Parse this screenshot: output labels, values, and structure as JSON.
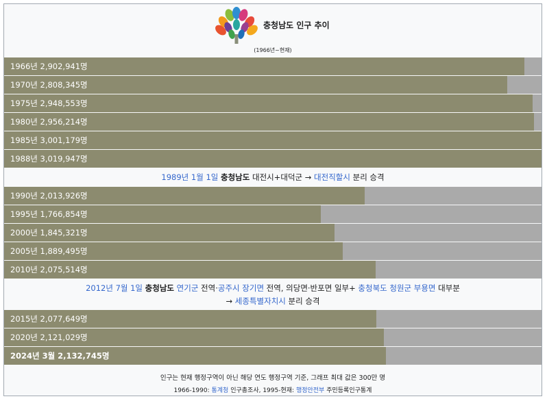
{
  "chart_data": {
    "type": "bar",
    "orientation": "horizontal",
    "title": "충청남도 인구 추이",
    "subtitle": "(1966년~현재)",
    "xlim": [
      0,
      3000000
    ],
    "rows": [
      {
        "kind": "bar",
        "label": "1966년 2,902,941명",
        "year": 1966,
        "value": 2902941
      },
      {
        "kind": "bar",
        "label": "1970년 2,808,345명",
        "year": 1970,
        "value": 2808345
      },
      {
        "kind": "bar",
        "label": "1975년 2,948,553명",
        "year": 1975,
        "value": 2948553
      },
      {
        "kind": "bar",
        "label": "1980년 2,956,214명",
        "year": 1980,
        "value": 2956214
      },
      {
        "kind": "bar",
        "label": "1985년 3,001,179명",
        "year": 1985,
        "value": 3001179
      },
      {
        "kind": "bar",
        "label": "1988년 3,019,947명",
        "year": 1988,
        "value": 3019947
      },
      {
        "kind": "note",
        "lines": [
          [
            {
              "text": "1989년 1월 1일",
              "style": "link"
            },
            {
              "text": " "
            },
            {
              "text": "충청남도",
              "style": "strong"
            },
            {
              "text": " 대전시+대덕군 → "
            },
            {
              "text": "대전직할시",
              "style": "link"
            },
            {
              "text": " 분리 승격"
            }
          ]
        ]
      },
      {
        "kind": "bar",
        "label": "1990년 2,013,926명",
        "year": 1990,
        "value": 2013926
      },
      {
        "kind": "bar",
        "label": "1995년 1,766,854명",
        "year": 1995,
        "value": 1766854
      },
      {
        "kind": "bar",
        "label": "2000년 1,845,321명",
        "year": 2000,
        "value": 1845321
      },
      {
        "kind": "bar",
        "label": "2005년 1,889,495명",
        "year": 2005,
        "value": 1889495
      },
      {
        "kind": "bar",
        "label": "2010년 2,075,514명",
        "year": 2010,
        "value": 2075514
      },
      {
        "kind": "note",
        "lines": [
          [
            {
              "text": "2012년 7월 1일",
              "style": "link"
            },
            {
              "text": " "
            },
            {
              "text": "충청남도",
              "style": "strong"
            },
            {
              "text": " "
            },
            {
              "text": "연기군",
              "style": "link"
            },
            {
              "text": " 전역·"
            },
            {
              "text": "공주시 장기면",
              "style": "link"
            },
            {
              "text": " 전역, 의당면·반포면 일부+ "
            },
            {
              "text": "충청북도 청원군 부용면",
              "style": "link"
            },
            {
              "text": " 대부분"
            }
          ],
          [
            {
              "text": "→ "
            },
            {
              "text": "세종특별자치시",
              "style": "link"
            },
            {
              "text": " 분리 승격"
            }
          ]
        ]
      },
      {
        "kind": "bar",
        "label": "2015년 2,077,649명",
        "year": 2015,
        "value": 2077649
      },
      {
        "kind": "bar",
        "label": "2020년 2,121,029명",
        "year": 2020,
        "value": 2121029
      },
      {
        "kind": "bar",
        "label": "2024년 3월 2,132,745명",
        "year": 2024,
        "value": 2132745,
        "bold": true
      }
    ]
  },
  "footer": {
    "line1": "인구는 현재 행정구역이 아닌 해당 연도 행정구역 기준, 그래프 최대 값은 300만 명",
    "line2_part1": "1966-1990: ",
    "line2_link1": "통계청",
    "line2_part2": " 인구총조사, 1995-현재: ",
    "line2_link2": "행정안전부",
    "line2_part3": " 주민등록인구통계"
  },
  "colors": {
    "bar": "#8c8b6f",
    "track": "#aaaaaa",
    "link": "#3366cc",
    "background": "#f8f9fa",
    "border": "#a2a9b1"
  },
  "logo_icon": "chungcheongnam-do-tree-logo-icon"
}
